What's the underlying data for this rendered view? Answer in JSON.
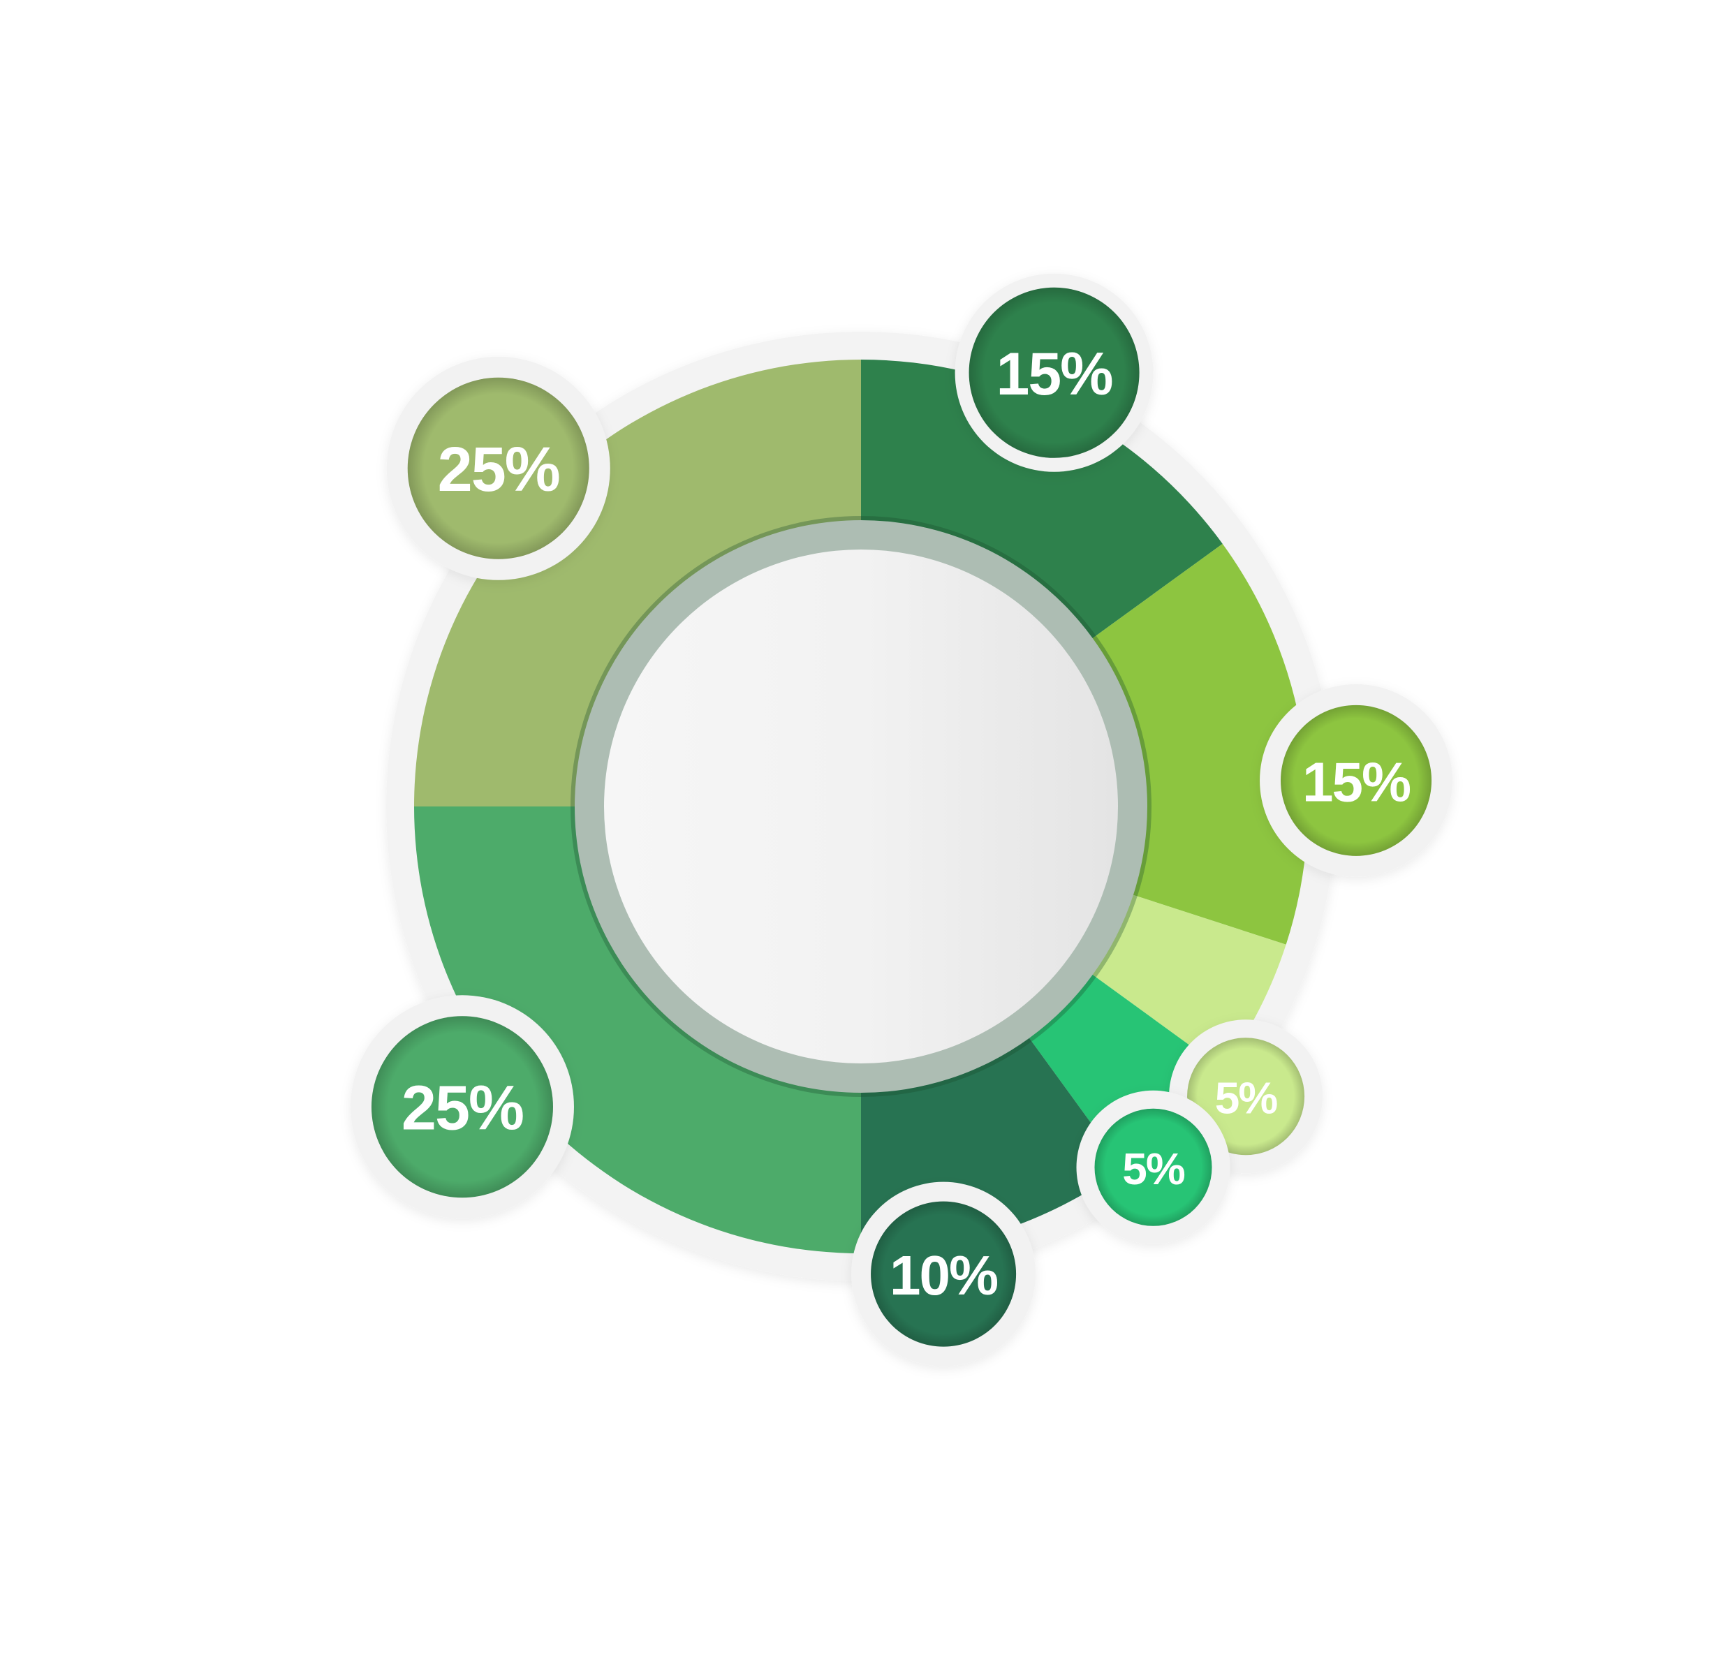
{
  "chart_data": {
    "type": "donut",
    "title": "",
    "segments": [
      {
        "value": 15,
        "label": "15%",
        "color": "#2e814c"
      },
      {
        "value": 15,
        "label": "15%",
        "color": "#8dc540"
      },
      {
        "value": 5,
        "label": "5%",
        "color": "#c9e98d"
      },
      {
        "value": 5,
        "label": "5%",
        "color": "#27c475"
      },
      {
        "value": 10,
        "label": "10%",
        "color": "#277352"
      },
      {
        "value": 25,
        "label": "25%",
        "color": "#4dab6a"
      },
      {
        "value": 25,
        "label": "25%",
        "color": "#9fba6d"
      }
    ],
    "legend": "none",
    "grid": false
  }
}
